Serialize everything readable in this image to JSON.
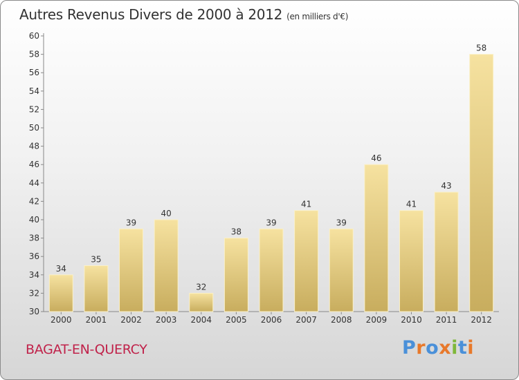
{
  "chart_data": {
    "type": "bar",
    "title": "Autres Revenus Divers de 2000 à 2012",
    "subtitle": "(en milliers d'€)",
    "xlabel": "",
    "ylabel": "",
    "categories": [
      "2000",
      "2001",
      "2002",
      "2003",
      "2004",
      "2005",
      "2006",
      "2007",
      "2008",
      "2009",
      "2010",
      "2011",
      "2012"
    ],
    "values": [
      34,
      35,
      39,
      40,
      32,
      38,
      39,
      41,
      39,
      46,
      41,
      43,
      58
    ],
    "ylim": [
      30,
      60
    ],
    "yticks": [
      30,
      32,
      34,
      36,
      38,
      40,
      42,
      44,
      46,
      48,
      50,
      52,
      54,
      56,
      58,
      60
    ],
    "grid": false,
    "legend": "none",
    "bar_color_top": "#f6e2a0",
    "bar_color_bottom": "#c8ad5e"
  },
  "commune": "BAGAT-EN-QUERCY",
  "brand": {
    "text": "Proxiti",
    "letters": [
      {
        "ch": "P",
        "color": "#4a90d9"
      },
      {
        "ch": "r",
        "color": "#e8792b"
      },
      {
        "ch": "o",
        "color": "#4a90d9"
      },
      {
        "ch": "x",
        "color": "#e8792b"
      },
      {
        "ch": "i",
        "color": "#7fb83a"
      },
      {
        "ch": "t",
        "color": "#4a90d9"
      },
      {
        "ch": "i",
        "color": "#e8792b"
      }
    ]
  },
  "colors": {
    "title": "#333333",
    "commune": "#c0224a",
    "axis": "#888888"
  }
}
